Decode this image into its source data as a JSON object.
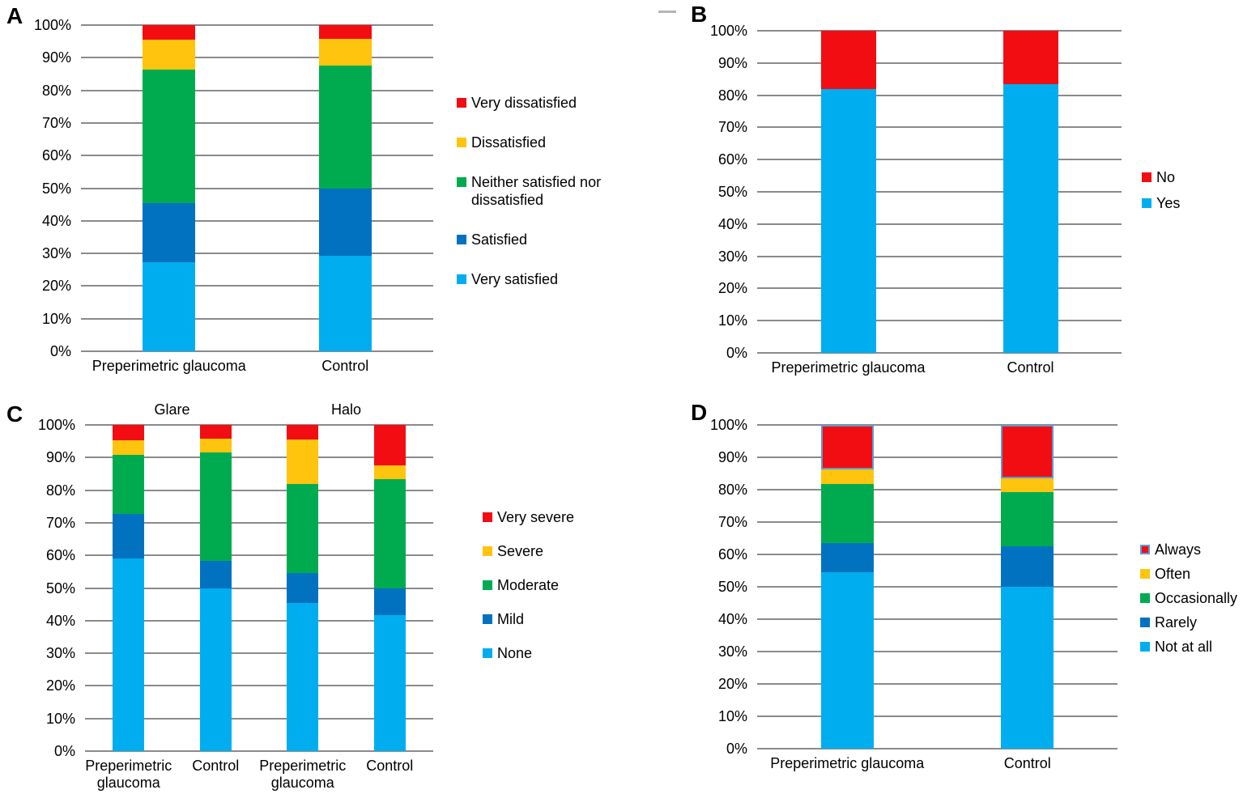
{
  "figure": {
    "panel_labels": [
      "A",
      "B",
      "C",
      "D"
    ]
  },
  "colors": {
    "red": "#F20D13",
    "yellow": "#FFC40D",
    "green": "#00AB50",
    "blue": "#0072C0",
    "light_blue": "#00AEEF",
    "bar_border": "#5B9BD5",
    "gridline": "#8A8A8A",
    "text": "#000000",
    "background": "#FFFFFF",
    "dash_artifact": "#B5B5B5"
  },
  "chart_data": [
    {
      "panel_label": "A",
      "type": "bar",
      "stacked": true,
      "units": "percent",
      "grid": true,
      "legend_position": "right",
      "ylim": [
        0,
        100
      ],
      "y_ticks": [
        "100%",
        "90%",
        "80%",
        "70%",
        "60%",
        "50%",
        "40%",
        "30%",
        "20%",
        "10%",
        "0%"
      ],
      "categories": [
        "Preperimetric glaucoma",
        "Control"
      ],
      "series": [
        {
          "name": "Very satisfied",
          "color_key": "light_blue",
          "values": [
            27.3,
            29.2
          ]
        },
        {
          "name": "Satisfied",
          "color_key": "blue",
          "values": [
            18.2,
            20.8
          ]
        },
        {
          "name": "Neither satisfied nor dissatisfied",
          "color_key": "green",
          "values": [
            40.9,
            37.5
          ]
        },
        {
          "name": "Dissatisfied",
          "color_key": "yellow",
          "values": [
            9.1,
            8.3
          ]
        },
        {
          "name": "Very dissatisfied",
          "color_key": "red",
          "values": [
            4.5,
            4.2
          ]
        }
      ],
      "legend": [
        {
          "label": "Very dissatisfied",
          "color_key": "red"
        },
        {
          "label": "Dissatisfied",
          "color_key": "yellow"
        },
        {
          "label": "Neither satisfied nor dissatisfied",
          "color_key": "green"
        },
        {
          "label": "Satisfied",
          "color_key": "blue"
        },
        {
          "label": "Very satisfied",
          "color_key": "light_blue"
        }
      ]
    },
    {
      "panel_label": "B",
      "type": "bar",
      "stacked": true,
      "units": "percent",
      "grid": true,
      "legend_position": "right",
      "ylim": [
        0,
        100
      ],
      "y_ticks": [
        "100%",
        "90%",
        "80%",
        "70%",
        "60%",
        "50%",
        "40%",
        "30%",
        "20%",
        "10%",
        "0%"
      ],
      "categories": [
        "Preperimetric glaucoma",
        "Control"
      ],
      "series": [
        {
          "name": "Yes",
          "color_key": "light_blue",
          "values": [
            81.8,
            83.3
          ]
        },
        {
          "name": "No",
          "color_key": "red",
          "values": [
            18.2,
            16.7
          ]
        }
      ],
      "legend": [
        {
          "label": "No",
          "color_key": "red"
        },
        {
          "label": "Yes",
          "color_key": "light_blue"
        }
      ]
    },
    {
      "panel_label": "C",
      "type": "bar",
      "stacked": true,
      "units": "percent",
      "grid": true,
      "legend_position": "right",
      "ylim": [
        0,
        100
      ],
      "y_ticks": [
        "100%",
        "90%",
        "80%",
        "70%",
        "60%",
        "50%",
        "40%",
        "30%",
        "20%",
        "10%",
        "0%"
      ],
      "group_labels": [
        "Glare",
        "Halo"
      ],
      "categories": [
        "Preperimetric glaucoma",
        "Control",
        "Preperimetric glaucoma",
        "Control"
      ],
      "series": [
        {
          "name": "None",
          "color_key": "light_blue",
          "values": [
            59.1,
            50.0,
            45.5,
            41.7
          ]
        },
        {
          "name": "Mild",
          "color_key": "blue",
          "values": [
            13.6,
            8.3,
            9.1,
            8.3
          ]
        },
        {
          "name": "Moderate",
          "color_key": "green",
          "values": [
            18.2,
            33.3,
            27.3,
            33.3
          ]
        },
        {
          "name": "Severe",
          "color_key": "yellow",
          "values": [
            4.5,
            4.2,
            13.6,
            4.2
          ]
        },
        {
          "name": "Very severe",
          "color_key": "red",
          "values": [
            4.6,
            4.2,
            4.5,
            12.5
          ]
        }
      ],
      "legend": [
        {
          "label": "Very severe",
          "color_key": "red"
        },
        {
          "label": "Severe",
          "color_key": "yellow"
        },
        {
          "label": "Moderate",
          "color_key": "green"
        },
        {
          "label": "Mild",
          "color_key": "blue"
        },
        {
          "label": "None",
          "color_key": "light_blue"
        }
      ]
    },
    {
      "panel_label": "D",
      "type": "bar",
      "stacked": true,
      "units": "percent",
      "grid": true,
      "legend_position": "right",
      "ylim": [
        0,
        100
      ],
      "y_ticks": [
        "100%",
        "90%",
        "80%",
        "70%",
        "60%",
        "50%",
        "40%",
        "30%",
        "20%",
        "10%",
        "0%"
      ],
      "categories": [
        "Preperimetric glaucoma",
        "Control"
      ],
      "series": [
        {
          "name": "Not at all",
          "color_key": "light_blue",
          "values": [
            54.5,
            50.0
          ]
        },
        {
          "name": "Rarely",
          "color_key": "blue",
          "values": [
            9.1,
            12.5
          ]
        },
        {
          "name": "Occasionally",
          "color_key": "green",
          "values": [
            18.2,
            16.7
          ]
        },
        {
          "name": "Often",
          "color_key": "yellow",
          "values": [
            4.5,
            4.2
          ]
        },
        {
          "name": "Always",
          "color_key": "red",
          "values": [
            13.6,
            16.7
          ],
          "border": true
        }
      ],
      "legend": [
        {
          "label": "Always",
          "color_key": "red",
          "border": true
        },
        {
          "label": "Often",
          "color_key": "yellow"
        },
        {
          "label": "Occasionally",
          "color_key": "green"
        },
        {
          "label": "Rarely",
          "color_key": "blue"
        },
        {
          "label": "Not at all",
          "color_key": "light_blue"
        }
      ]
    }
  ]
}
